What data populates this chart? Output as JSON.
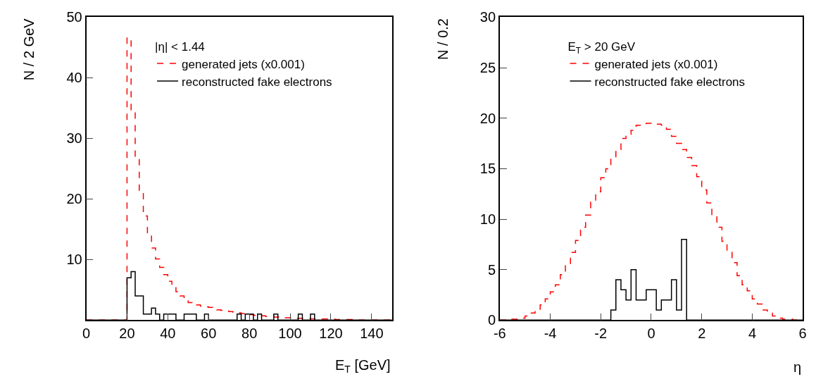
{
  "chart_data": [
    {
      "type": "histogram",
      "xlabel": "E$_{T}$ [GeV]",
      "ylabel": "N / 2 GeV",
      "legend_title": "|η| < 1.44",
      "legend": "top right",
      "xlim": [
        0,
        150
      ],
      "xticks": [
        0,
        20,
        40,
        60,
        80,
        100,
        120,
        140
      ],
      "ylim": [
        0,
        50
      ],
      "yticks": [
        10,
        20,
        30,
        40,
        50
      ],
      "bins": [
        0,
        2,
        4,
        6,
        8,
        10,
        12,
        14,
        16,
        18,
        20,
        22,
        24,
        26,
        28,
        30,
        32,
        34,
        36,
        38,
        40,
        42,
        44,
        46,
        48,
        50,
        52,
        54,
        56,
        58,
        60,
        62,
        64,
        66,
        68,
        70,
        72,
        74,
        76,
        78,
        80,
        82,
        84,
        86,
        88,
        90,
        92,
        94,
        96,
        98,
        100,
        102,
        104,
        106,
        108,
        110,
        112,
        114,
        116,
        118,
        120,
        122,
        124,
        126,
        128,
        130,
        132,
        134,
        136,
        138,
        140,
        142,
        144,
        146,
        148,
        150
      ],
      "series": [
        {
          "name": "generated jets (x0.001)",
          "color": "#ff0000",
          "line_style": "dashed",
          "values": [
            0,
            0,
            0,
            0,
            0,
            0,
            0,
            0,
            0,
            0,
            46.6,
            34.7,
            26.9,
            21.4,
            17.2,
            14.0,
            11.9,
            10.1,
            8.7,
            7.5,
            6.4,
            5.6,
            4.7,
            4.0,
            3.4,
            2.9,
            2.7,
            2.5,
            2.3,
            2.2,
            2.1,
            1.9,
            1.7,
            1.6,
            1.5,
            1.4,
            1.3,
            1.2,
            1.1,
            1.0,
            0.9,
            0.8,
            0.8,
            0.7,
            0.6,
            0.6,
            0.5,
            0.5,
            0.4,
            0.4,
            0.4,
            0.3,
            0.3,
            0.3,
            0.3,
            0.2,
            0.2,
            0.2,
            0.2,
            0.2,
            0.2,
            0.1,
            0.1,
            0.1,
            0.1,
            0.1,
            0,
            0,
            0,
            0,
            0,
            0,
            0,
            0,
            0
          ]
        },
        {
          "name": "reconstructed fake electrons",
          "color": "#000000",
          "line_style": "solid",
          "values": [
            0,
            0,
            0,
            0,
            0,
            0,
            0,
            0,
            0,
            0,
            7,
            8,
            4,
            4,
            1,
            1,
            2,
            1,
            0,
            1,
            1,
            1,
            0,
            0,
            1,
            1,
            1,
            0,
            0,
            1,
            0,
            0,
            0,
            0,
            0,
            0,
            0,
            1,
            0,
            1,
            1,
            0,
            1,
            0,
            0,
            0,
            1,
            0,
            0,
            0,
            0,
            0,
            1,
            0,
            0,
            1,
            0,
            0,
            0,
            0,
            0,
            0,
            0,
            0,
            0,
            0,
            0,
            0,
            0,
            0,
            0,
            0,
            0,
            0,
            0
          ]
        }
      ]
    },
    {
      "type": "histogram",
      "xlabel": "η",
      "ylabel": "N / 0.2",
      "legend_title": "E$_{T}$ > 20 GeV",
      "legend": "top right",
      "xlim": [
        -6,
        6
      ],
      "xticks": [
        -6,
        -4,
        -2,
        0,
        2,
        4,
        6
      ],
      "ylim": [
        0,
        30
      ],
      "yticks": [
        0,
        5,
        10,
        15,
        20,
        25,
        30
      ],
      "bins": [
        -6.0,
        -5.8,
        -5.6,
        -5.4,
        -5.2,
        -5.0,
        -4.8,
        -4.6,
        -4.4,
        -4.2,
        -4.0,
        -3.8,
        -3.6,
        -3.4,
        -3.2,
        -3.0,
        -2.8,
        -2.6,
        -2.4,
        -2.2,
        -2.0,
        -1.8,
        -1.6,
        -1.4,
        -1.2,
        -1.0,
        -0.8,
        -0.6,
        -0.4,
        -0.2,
        0.0,
        0.2,
        0.4,
        0.6,
        0.8,
        1.0,
        1.2,
        1.4,
        1.6,
        1.8,
        2.0,
        2.2,
        2.4,
        2.6,
        2.8,
        3.0,
        3.2,
        3.4,
        3.6,
        3.8,
        4.0,
        4.2,
        4.4,
        4.6,
        4.8,
        5.0,
        5.2,
        5.4,
        5.6,
        5.8,
        6.0
      ],
      "series": [
        {
          "name": "generated jets (x0.001)",
          "color": "#ff0000",
          "line_style": "dashed",
          "values": [
            0,
            0,
            0.1,
            0.1,
            0.2,
            0.4,
            0.7,
            1.0,
            1.5,
            2.1,
            2.8,
            3.5,
            4.5,
            5.5,
            6.7,
            7.9,
            9.2,
            10.4,
            11.7,
            12.7,
            14.1,
            15.0,
            16.1,
            16.9,
            18.0,
            18.4,
            18.8,
            19.3,
            19.3,
            19.5,
            19.4,
            19.4,
            19.3,
            18.9,
            18.2,
            17.5,
            16.9,
            16.1,
            15.3,
            14.2,
            12.9,
            11.6,
            10.3,
            9.2,
            7.8,
            6.7,
            5.7,
            4.4,
            3.5,
            2.9,
            2.1,
            1.6,
            1.0,
            0.7,
            0.4,
            0.2,
            0.1,
            0.1,
            0,
            0
          ]
        },
        {
          "name": "reconstructed fake electrons",
          "color": "#000000",
          "line_style": "solid",
          "values": [
            0,
            0,
            0,
            0,
            0,
            0,
            0,
            0,
            0,
            0,
            0,
            0,
            0,
            0,
            0,
            0,
            0,
            0,
            0,
            0,
            0,
            0,
            1,
            4,
            3,
            2,
            5,
            2,
            2,
            3,
            3,
            1,
            2,
            2,
            4,
            1,
            8,
            0,
            0,
            0,
            0,
            0,
            0,
            0,
            0,
            0,
            0,
            0,
            0,
            0,
            0,
            0,
            0,
            0,
            0,
            0,
            0,
            0,
            0,
            0
          ]
        }
      ]
    }
  ]
}
